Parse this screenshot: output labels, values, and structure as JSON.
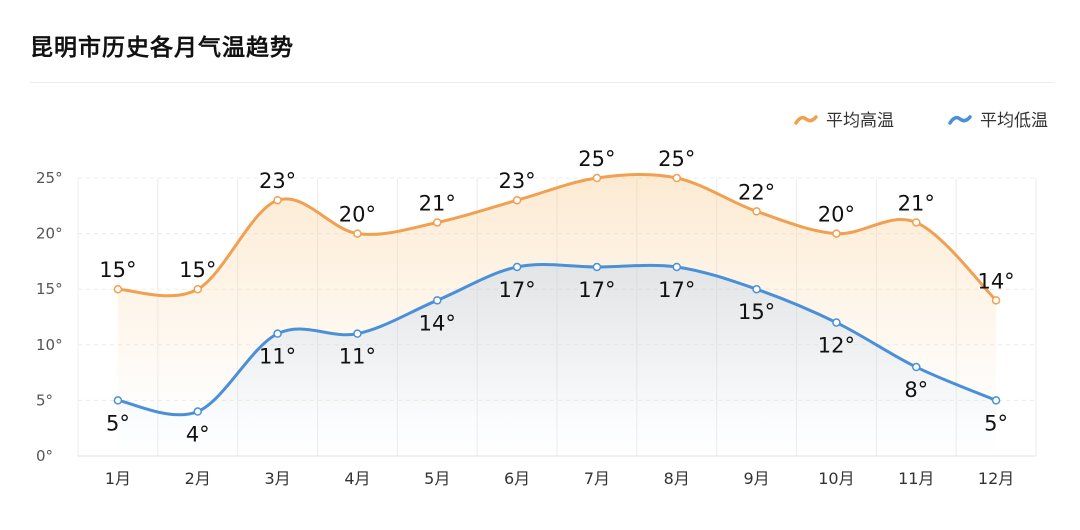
{
  "title": "昆明市历史各月气温趋势",
  "chart_data": {
    "type": "line",
    "title": "昆明市历史各月气温趋势",
    "categories": [
      "1月",
      "2月",
      "3月",
      "4月",
      "5月",
      "6月",
      "7月",
      "8月",
      "9月",
      "10月",
      "11月",
      "12月"
    ],
    "series": [
      {
        "name": "平均高温",
        "color": "#f0a050",
        "values": [
          15,
          15,
          23,
          20,
          21,
          23,
          25,
          25,
          22,
          20,
          21,
          14
        ]
      },
      {
        "name": "平均低温",
        "color": "#4a90d9",
        "values": [
          5,
          4,
          11,
          11,
          14,
          17,
          17,
          17,
          15,
          12,
          8,
          5
        ]
      }
    ],
    "ylim": [
      0,
      25
    ],
    "yticks": [
      "0°",
      "5°",
      "10°",
      "15°",
      "20°",
      "25°"
    ],
    "value_suffix": "°",
    "grid": true,
    "legend": "top-right"
  }
}
